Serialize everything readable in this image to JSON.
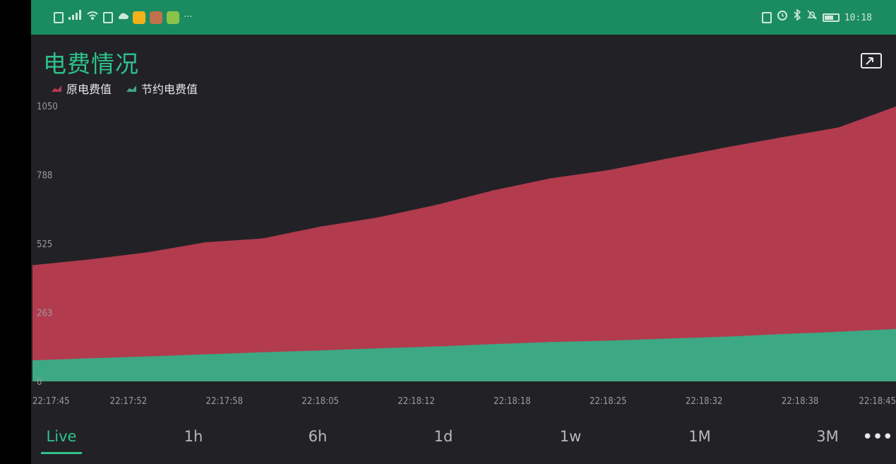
{
  "status_bar": {
    "time": "10:18",
    "left_icons": [
      "sim-icon",
      "signal-icon",
      "wifi-icon",
      "nfc-icon",
      "cloud-icon",
      "app-icon-1",
      "app-icon-2",
      "app-icon-3",
      "more-notifications-icon"
    ],
    "right_icons": [
      "nfc-icon",
      "alarm-icon",
      "bluetooth-icon",
      "mute-icon",
      "battery-icon"
    ],
    "colors": {
      "bar": "#1b8c62"
    }
  },
  "header": {
    "title": "电费情况",
    "expand_icon": "expand-icon"
  },
  "legend": [
    {
      "label": "原电费值",
      "color": "#b23b4e"
    },
    {
      "label": "节约电费值",
      "color": "#3da884"
    }
  ],
  "chart_data": {
    "type": "area",
    "x_ticks": [
      "22:17:45",
      "22:17:52",
      "22:17:58",
      "22:18:05",
      "22:18:12",
      "22:18:18",
      "22:18:25",
      "22:18:32",
      "22:18:38",
      "22:18:45"
    ],
    "y_ticks": [
      "0",
      "263",
      "525",
      "788",
      "1050"
    ],
    "ylim": [
      0,
      1050
    ],
    "x_seconds": [
      0,
      4,
      8,
      12,
      16,
      20,
      24,
      28,
      32,
      36,
      40,
      44,
      48,
      52,
      56,
      60
    ],
    "series": [
      {
        "name": "原电费值",
        "color": "#b23b4e",
        "values": [
          443,
          465,
          492,
          530,
          545,
          590,
          625,
          672,
          728,
          774,
          805,
          848,
          890,
          930,
          968,
          1048
        ]
      },
      {
        "name": "节约电费值",
        "color": "#3da884",
        "values": [
          80,
          88,
          95,
          103,
          111,
          118,
          126,
          133,
          142,
          150,
          155,
          163,
          170,
          180,
          189,
          200
        ]
      }
    ]
  },
  "range_tabs": {
    "items": [
      "Live",
      "1h",
      "6h",
      "1d",
      "1w",
      "1M",
      "3M"
    ],
    "active": "Live",
    "more_label": "•••"
  }
}
